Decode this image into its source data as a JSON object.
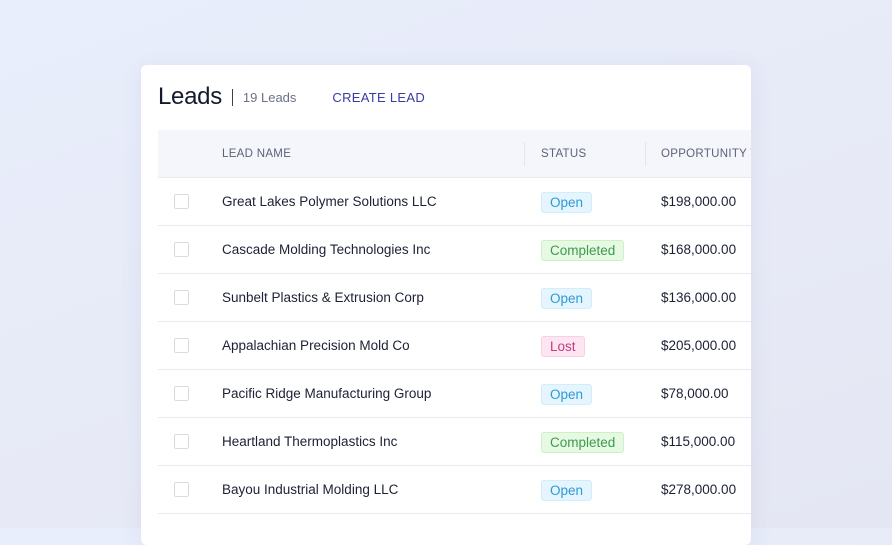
{
  "header": {
    "title": "Leads",
    "count": "19 Leads",
    "create_label": "CREATE LEAD"
  },
  "table": {
    "columns": [
      "LEAD NAME",
      "STATUS",
      "OPPORTUNITY V"
    ],
    "rows": [
      {
        "name": "Great Lakes Polymer Solutions LLC",
        "status": "Open",
        "amount": "$198,000.00"
      },
      {
        "name": "Cascade Molding Technologies Inc",
        "status": "Completed",
        "amount": "$168,000.00"
      },
      {
        "name": "Sunbelt Plastics & Extrusion Corp",
        "status": "Open",
        "amount": "$136,000.00"
      },
      {
        "name": "Appalachian Precision Mold Co",
        "status": "Lost",
        "amount": "$205,000.00"
      },
      {
        "name": "Pacific Ridge Manufacturing Group",
        "status": "Open",
        "amount": "$78,000.00"
      },
      {
        "name": "Heartland Thermoplastics Inc",
        "status": "Completed",
        "amount": "$115,000.00"
      },
      {
        "name": "Bayou Industrial Molding LLC",
        "status": "Open",
        "amount": "$278,000.00"
      }
    ]
  },
  "status_colors": {
    "Open": "#2f9ad4",
    "Completed": "#3e9a4e",
    "Lost": "#c43b7f"
  }
}
